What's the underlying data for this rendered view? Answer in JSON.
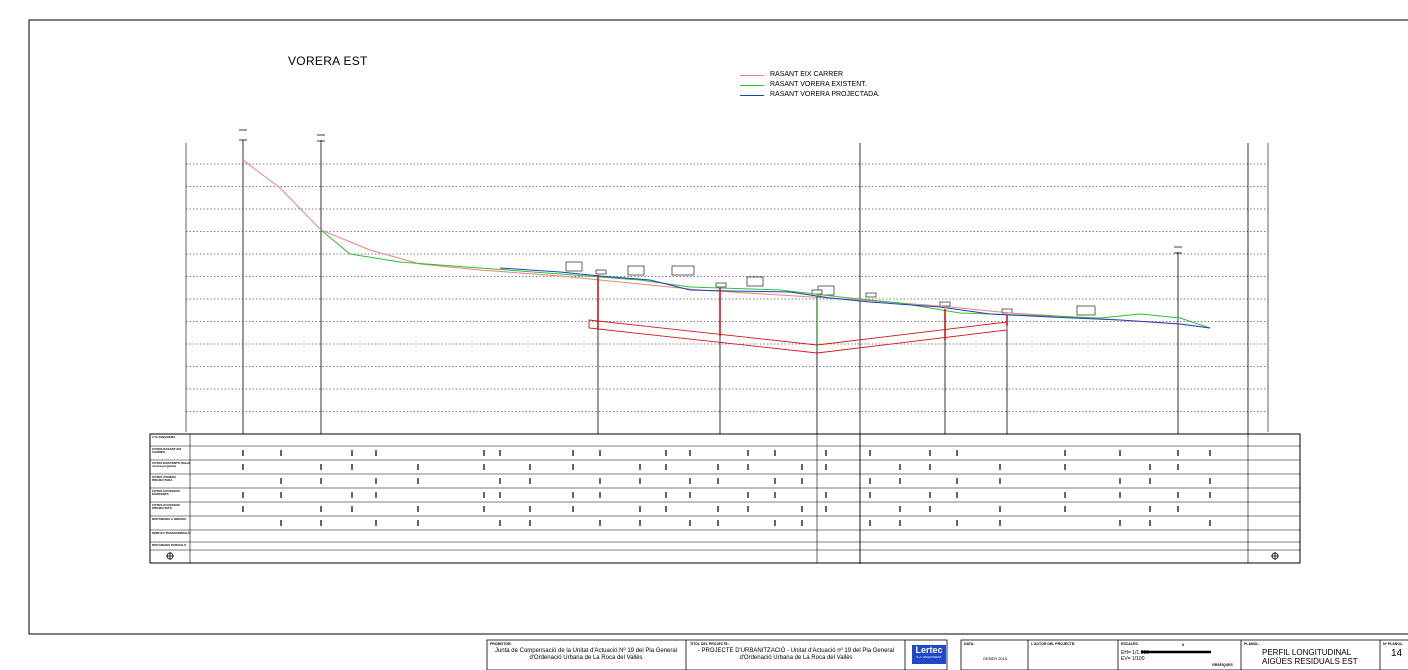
{
  "drawing": {
    "title": "VORERA EST",
    "legend": [
      {
        "label": "RASANT EIX CARRER",
        "color": "#f08080"
      },
      {
        "label": "RASANT VORERA EXISTENT.",
        "color": "#30c030"
      },
      {
        "label": "RASANT VORERA PROJECTADA.",
        "color": "#2040c0"
      }
    ]
  },
  "profile": {
    "rows": [
      {
        "label": "# CLAVEGUERA"
      },
      {
        "label": "COTES RASANT EIX CARRER"
      },
      {
        "label": "COTES EXISTENTS (Nivell vorera-projectat)"
      },
      {
        "label": "COTES VORERA PROJECTADA"
      },
      {
        "label": "COTES ACCESSOS EXISTENTS"
      },
      {
        "label": "COTES ACCESSOS PROJECTATS"
      },
      {
        "label": "DISTÀNCIES A ORIGEN"
      },
      {
        "label": "PERFILS TRANSVERSALS"
      },
      {
        "label": "DISTÀNCIES PARCIALS"
      }
    ]
  },
  "titleblock": {
    "promotor_h": "PROMOTOR:",
    "promotor": "Junta de Compensació de la Unitat d'Actuació Nº 19 del Pla General d'Ordenació Urbana de La Roca del Vallès",
    "titol_h": "TÍTOL DEL PROJECTE:",
    "titol": "- PROJECTE D'URBANITZACIÓ - Unitat d'Actuació nº 19 del Pla General d'Ordenació Urbana de La Roca del Vallès",
    "logo": "Lertec",
    "logo_sub": "S.A. ENGINYERIA",
    "data_h": "DATA:",
    "data": "GENER 2015",
    "autor_h": "L'AUTOR DEL PROJECTE:",
    "escales_h": "ESCALES:",
    "eh": "EH= 1/1.000",
    "ev": "EV= 1/100",
    "grafiques": "GRÀFIQUES",
    "zero": "0",
    "planol_h": "PLÀNOL:",
    "planol1": "PERFIL LONGITUDINAL",
    "planol2": "AIGÜES RESIDUALS EST",
    "num_h": "Nº PLÀNOL:",
    "num": "14"
  }
}
